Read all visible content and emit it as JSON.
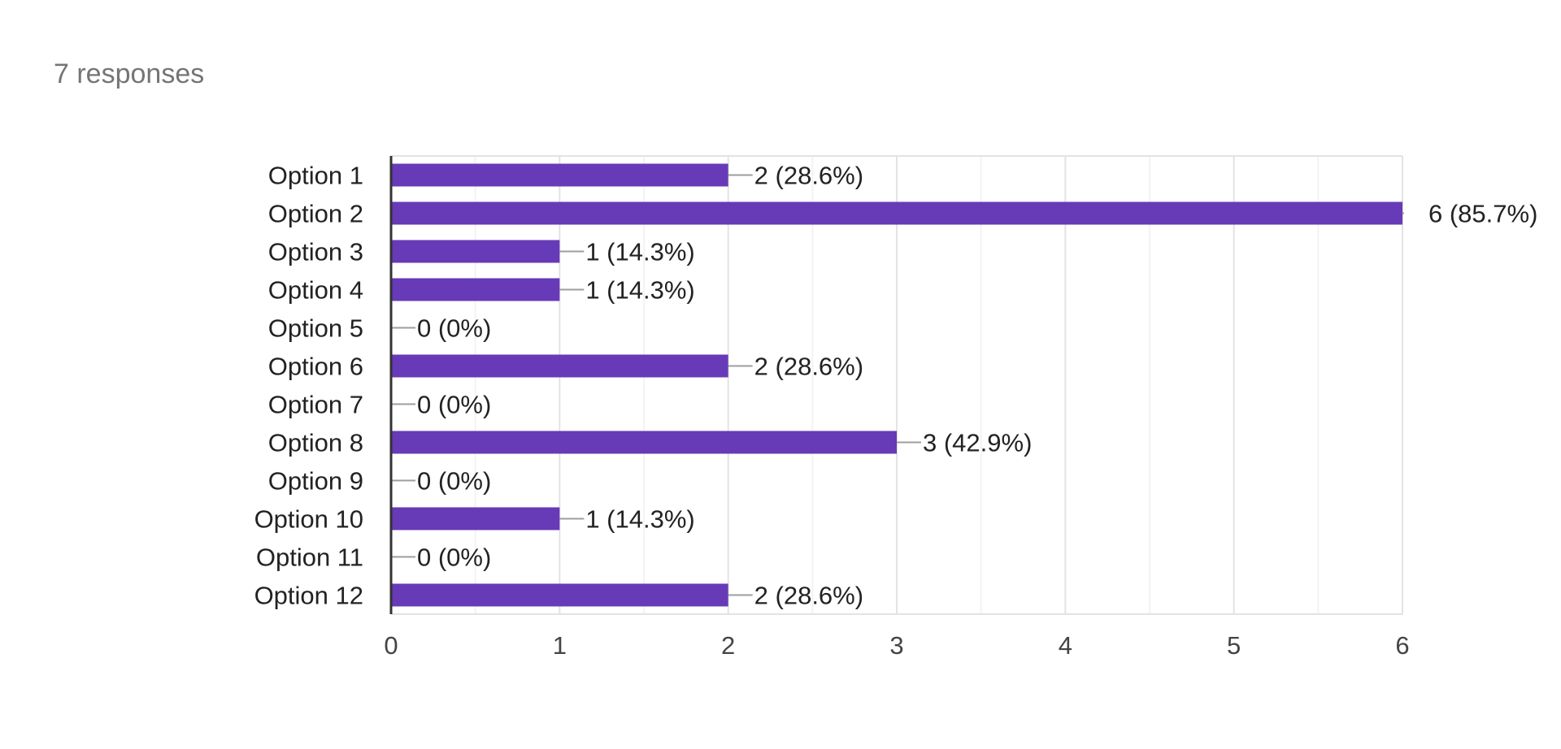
{
  "summary": {
    "responses_label": "7 responses"
  },
  "colors": {
    "bar": "#673ab7",
    "grid_major": "#e3e3e3",
    "grid_minor": "#f3f3f3",
    "axis": "#333333",
    "leader": "#9e9e9e",
    "category_text": "#222222",
    "tick_text": "#444444",
    "value_text": "#222222"
  },
  "chart_data": {
    "type": "bar",
    "orientation": "horizontal",
    "categories": [
      "Option 1",
      "Option 2",
      "Option 3",
      "Option 4",
      "Option 5",
      "Option 6",
      "Option 7",
      "Option 8",
      "Option 9",
      "Option 10",
      "Option 11",
      "Option 12"
    ],
    "values": [
      2,
      6,
      1,
      1,
      0,
      2,
      0,
      3,
      0,
      1,
      0,
      2
    ],
    "value_labels": [
      "2 (28.6%)",
      "6 (85.7%)",
      "1 (14.3%)",
      "1 (14.3%)",
      "0 (0%)",
      "2 (28.6%)",
      "0 (0%)",
      "3 (42.9%)",
      "0 (0%)",
      "1 (14.3%)",
      "0 (0%)",
      "2 (28.6%)"
    ],
    "xticks": [
      "0",
      "1",
      "2",
      "3",
      "4",
      "5",
      "6"
    ],
    "xlim": [
      0,
      6
    ],
    "grid": true,
    "legend": "none"
  }
}
